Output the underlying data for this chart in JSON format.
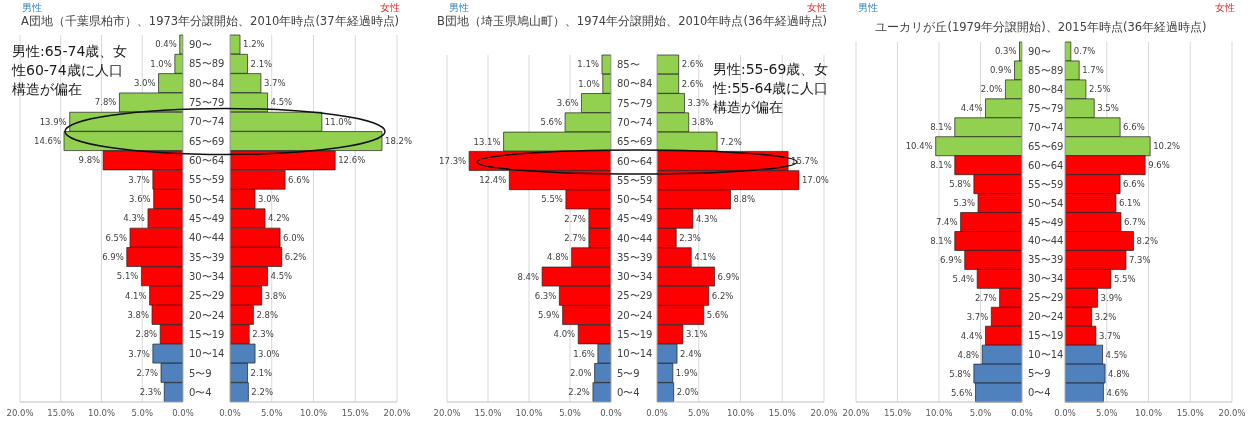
{
  "chart_data": [
    {
      "type": "bar",
      "orientation": "horizontal",
      "title": "A団地（千葉県柏市）、1973年分譲開始、2010年時点(37年経過時点)",
      "annotations": [
        "男性",
        "男性:65-74歳、女性60-74歳に人口構造が偏在"
      ],
      "categories": [
        "90〜",
        "85〜89",
        "80〜84",
        "75〜79",
        "70〜74",
        "65〜69",
        "60〜64",
        "55〜59",
        "50〜54",
        "45〜49",
        "40〜44",
        "35〜39",
        "30〜34",
        "25〜29",
        "20〜24",
        "15〜19",
        "10〜14",
        "5〜9",
        "0〜4"
      ],
      "values": [
        0.4,
        1.0,
        3.0,
        7.8,
        13.9,
        14.6,
        9.8,
        3.7,
        3.6,
        4.3,
        6.5,
        6.9,
        5.1,
        4.1,
        3.8,
        2.8,
        3.7,
        2.7,
        2.3
      ],
      "value_labels": [
        "0.4%",
        "1.0%",
        "3.0%",
        "7.8%",
        "13.9%",
        "14.6%",
        "9.8%",
        "3.7%",
        "3.6%",
        "4.3%",
        "6.5%",
        "6.9%",
        "5.1%",
        "4.1%",
        "3.8%",
        "2.8%",
        "3.7%",
        "2.7%",
        "2.3%"
      ],
      "colors": [
        "#92d050",
        "#92d050",
        "#92d050",
        "#92d050",
        "#92d050",
        "#92d050",
        "#ff0000",
        "#ff0000",
        "#ff0000",
        "#ff0000",
        "#ff0000",
        "#ff0000",
        "#ff0000",
        "#ff0000",
        "#ff0000",
        "#ff0000",
        "#4f81bd",
        "#4f81bd",
        "#4f81bd"
      ],
      "xlim": [
        20,
        0
      ],
      "xticks": [
        {
          "value": 20,
          "label": "20.0%"
        },
        {
          "value": 15,
          "label": "15.0%"
        },
        {
          "value": 10,
          "label": "10.0%"
        },
        {
          "value": 5,
          "label": "5.0%"
        },
        {
          "value": 0,
          "label": "0.0%"
        }
      ],
      "grid": "x"
    },
    {
      "type": "bar",
      "orientation": "horizontal",
      "annotations": [
        "女性"
      ],
      "categories": [
        null,
        null,
        null,
        null,
        null,
        null,
        null,
        null,
        null,
        null,
        null,
        null,
        null,
        null,
        null,
        null,
        null,
        null,
        null
      ],
      "values": [
        1.2,
        2.1,
        3.7,
        4.5,
        11.0,
        18.2,
        12.6,
        6.6,
        3.0,
        4.2,
        6.0,
        6.2,
        4.5,
        3.8,
        2.8,
        2.3,
        3.0,
        2.1,
        2.2
      ],
      "value_labels": [
        "1.2%",
        "2.1%",
        "3.7%",
        "4.5%",
        "11.0%",
        "18.2%",
        "12.6%",
        "6.6%",
        "3.0%",
        "4.2%",
        "6.0%",
        "6.2%",
        "4.5%",
        "3.8%",
        "2.8%",
        "2.3%",
        "3.0%",
        "2.1%",
        "2.2%"
      ],
      "colors": [
        "#92d050",
        "#92d050",
        "#92d050",
        "#92d050",
        "#92d050",
        "#92d050",
        "#ff0000",
        "#ff0000",
        "#ff0000",
        "#ff0000",
        "#ff0000",
        "#ff0000",
        "#ff0000",
        "#ff0000",
        "#ff0000",
        "#ff0000",
        "#4f81bd",
        "#4f81bd",
        "#4f81bd"
      ],
      "xlim": [
        0,
        20
      ],
      "xticks": [
        {
          "value": 0,
          "label": "0.0%"
        },
        {
          "value": 5,
          "label": "5.0%"
        },
        {
          "value": 10,
          "label": "10.0%"
        },
        {
          "value": 15,
          "label": "15.0%"
        },
        {
          "value": 20,
          "label": "20.0%"
        }
      ],
      "grid": "x",
      "tick_labels": "x"
    },
    {
      "type": "bar",
      "orientation": "horizontal",
      "title": "B団地（埼玉県鳩山町）、1974年分譲開始、2010年時点(36年経過時点)",
      "annotations": [
        "男性"
      ],
      "categories": [
        "85〜",
        "80〜84",
        "75〜79",
        "70〜74",
        "65〜69",
        "60〜64",
        "55〜59",
        "50〜54",
        "45〜49",
        "40〜44",
        "35〜39",
        "30〜34",
        "25〜29",
        "20〜24",
        "15〜19",
        "10〜14",
        "5〜9",
        "0〜4"
      ],
      "values": [
        1.1,
        1.0,
        3.6,
        5.6,
        13.1,
        17.3,
        12.4,
        5.5,
        2.7,
        2.7,
        4.8,
        8.4,
        6.3,
        5.9,
        4.0,
        1.6,
        2.0,
        2.2
      ],
      "value_labels": [
        "1.1%",
        "1.0%",
        "3.6%",
        "5.6%",
        "13.1%",
        "17.3%",
        "12.4%",
        "5.5%",
        "2.7%",
        "2.7%",
        "4.8%",
        "8.4%",
        "6.3%",
        "5.9%",
        "4.0%",
        "1.6%",
        "2.0%",
        "2.2%"
      ],
      "colors": [
        "#92d050",
        "#92d050",
        "#92d050",
        "#92d050",
        "#92d050",
        "#ff0000",
        "#ff0000",
        "#ff0000",
        "#ff0000",
        "#ff0000",
        "#ff0000",
        "#ff0000",
        "#ff0000",
        "#ff0000",
        "#ff0000",
        "#4f81bd",
        "#4f81bd",
        "#4f81bd"
      ],
      "xlim": [
        20,
        0
      ],
      "xticks": [
        {
          "value": 20,
          "label": "20.0%"
        },
        {
          "value": 15,
          "label": "15.0%"
        },
        {
          "value": 10,
          "label": "10.0%"
        },
        {
          "value": 5,
          "label": "5.0%"
        },
        {
          "value": 0,
          "label": "0.0%"
        }
      ],
      "grid": "x"
    },
    {
      "type": "bar",
      "orientation": "horizontal",
      "annotations": [
        "女性",
        "男性:55-69歳、女性:55-64歳に人口構造が偏在"
      ],
      "categories": [
        null,
        null,
        null,
        null,
        null,
        null,
        null,
        null,
        null,
        null,
        null,
        null,
        null,
        null,
        null,
        null,
        null,
        null
      ],
      "values": [
        2.6,
        2.6,
        3.3,
        3.8,
        7.2,
        15.7,
        17.0,
        8.8,
        4.3,
        2.3,
        4.1,
        6.9,
        6.2,
        5.6,
        3.1,
        2.4,
        1.9,
        2.0
      ],
      "value_labels": [
        "2.6%",
        "2.6%",
        "3.3%",
        "3.8%",
        "7.2%",
        "15.7%",
        "17.0%",
        "8.8%",
        "4.3%",
        "2.3%",
        "4.1%",
        "6.9%",
        "6.2%",
        "5.6%",
        "3.1%",
        "2.4%",
        "1.9%",
        "2.0%"
      ],
      "colors": [
        "#92d050",
        "#92d050",
        "#92d050",
        "#92d050",
        "#92d050",
        "#ff0000",
        "#ff0000",
        "#ff0000",
        "#ff0000",
        "#ff0000",
        "#ff0000",
        "#ff0000",
        "#ff0000",
        "#ff0000",
        "#ff0000",
        "#4f81bd",
        "#4f81bd",
        "#4f81bd"
      ],
      "xlim": [
        0,
        20
      ],
      "xticks": [
        {
          "value": 0,
          "label": "0.0%"
        },
        {
          "value": 5,
          "label": "5.0%"
        },
        {
          "value": 10,
          "label": "10.0%"
        },
        {
          "value": 15,
          "label": "15.0%"
        },
        {
          "value": 20,
          "label": "20.0%"
        }
      ],
      "grid": "x",
      "tick_labels": "x"
    },
    {
      "type": "bar",
      "orientation": "horizontal",
      "title": "ユーカリが丘(1979年分譲開始)、2015年時点(36年経過時点)",
      "annotations": [
        "男性"
      ],
      "categories": [
        "90〜",
        "85〜89",
        "80〜84",
        "75〜79",
        "70〜74",
        "65〜69",
        "60〜64",
        "55〜59",
        "50〜54",
        "45〜49",
        "40〜44",
        "35〜39",
        "30〜34",
        "25〜29",
        "20〜24",
        "15〜19",
        "10〜14",
        "5〜9",
        "0〜4"
      ],
      "values": [
        0.3,
        0.9,
        2.0,
        4.4,
        8.1,
        10.4,
        8.1,
        5.8,
        5.3,
        7.4,
        8.1,
        6.9,
        5.4,
        2.7,
        3.7,
        4.4,
        4.8,
        5.8,
        5.6
      ],
      "value_labels": [
        "0.3%",
        "0.9%",
        "2.0%",
        "4.4%",
        "8.1%",
        "10.4%",
        "8.1%",
        "5.8%",
        "5.3%",
        "7.4%",
        "8.1%",
        "6.9%",
        "5.4%",
        "2.7%",
        "3.7%",
        "4.4%",
        "4.8%",
        "5.8%",
        "5.6%"
      ],
      "colors": [
        "#92d050",
        "#92d050",
        "#92d050",
        "#92d050",
        "#92d050",
        "#92d050",
        "#ff0000",
        "#ff0000",
        "#ff0000",
        "#ff0000",
        "#ff0000",
        "#ff0000",
        "#ff0000",
        "#ff0000",
        "#ff0000",
        "#ff0000",
        "#4f81bd",
        "#4f81bd",
        "#4f81bd"
      ],
      "xlim": [
        20,
        0
      ],
      "xticks": [
        {
          "value": 20,
          "label": "20.0%"
        },
        {
          "value": 15,
          "label": "15.0%"
        },
        {
          "value": 10,
          "label": "10.0%"
        },
        {
          "value": 5,
          "label": "5.0%"
        },
        {
          "value": 0,
          "label": "0.0%"
        }
      ],
      "grid": "x"
    },
    {
      "type": "bar",
      "orientation": "horizontal",
      "annotations": [
        "女性"
      ],
      "categories": [
        null,
        null,
        null,
        null,
        null,
        null,
        null,
        null,
        null,
        null,
        null,
        null,
        null,
        null,
        null,
        null,
        null,
        null,
        null
      ],
      "values": [
        0.7,
        1.7,
        2.5,
        3.5,
        6.6,
        10.2,
        9.6,
        6.6,
        6.1,
        6.7,
        8.2,
        7.3,
        5.5,
        3.9,
        3.2,
        3.7,
        4.5,
        4.8,
        4.6
      ],
      "value_labels": [
        "0.7%",
        "1.7%",
        "2.5%",
        "3.5%",
        "6.6%",
        "10.2%",
        "9.6%",
        "6.6%",
        "6.1%",
        "6.7%",
        "8.2%",
        "7.3%",
        "5.5%",
        "3.9%",
        "3.2%",
        "3.7%",
        "4.5%",
        "4.8%",
        "4.6%"
      ],
      "colors": [
        "#92d050",
        "#92d050",
        "#92d050",
        "#92d050",
        "#92d050",
        "#92d050",
        "#ff0000",
        "#ff0000",
        "#ff0000",
        "#ff0000",
        "#ff0000",
        "#ff0000",
        "#ff0000",
        "#ff0000",
        "#ff0000",
        "#ff0000",
        "#4f81bd",
        "#4f81bd",
        "#4f81bd"
      ],
      "xlim": [
        0,
        20
      ],
      "xticks": [
        {
          "value": 0,
          "label": "0.0%"
        },
        {
          "value": 5,
          "label": "5.0%"
        },
        {
          "value": 10,
          "label": "10.0%"
        },
        {
          "value": 15,
          "label": "15.0%"
        },
        {
          "value": 20,
          "label": "20.0%"
        }
      ],
      "grid": "x",
      "tick_labels": "x"
    }
  ]
}
